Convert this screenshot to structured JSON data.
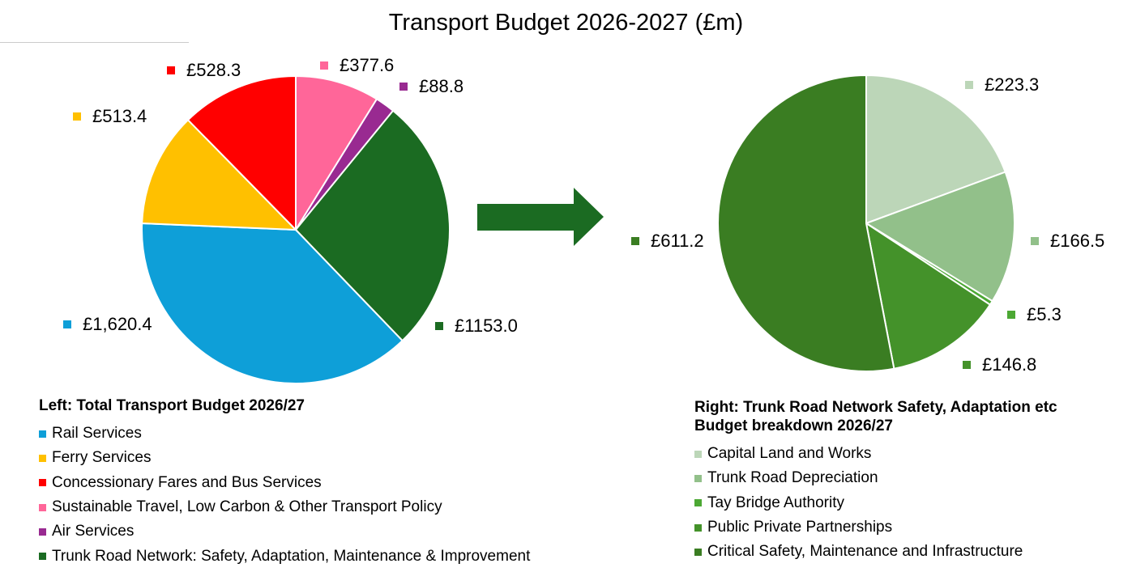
{
  "chart_data": [
    {
      "type": "pie",
      "title": "Transport Budget 2026-2027 (£m)",
      "legend_title": "Left: Total Transport Budget 2026/27",
      "legend_placement": "bottom",
      "slices": [
        {
          "name": "Sustainable Travel, Low Carbon & Other Transport Policy",
          "value": 377.6,
          "label": "£377.6",
          "color": "#FF6699"
        },
        {
          "name": "Air Services",
          "value": 88.8,
          "label": "£88.8",
          "color": "#992A91"
        },
        {
          "name": "Trunk Road Network: Safety, Adaptation, Maintenance & Improvement",
          "value": 1153.0,
          "label": "£1153.0",
          "color": "#1B6B22"
        },
        {
          "name": "Rail Services",
          "value": 1620.4,
          "label": "£1,620.4",
          "color": "#0E9FD8"
        },
        {
          "name": "Ferry Services",
          "value": 513.4,
          "label": "£513.4",
          "color": "#FFC000"
        },
        {
          "name": "Concessionary Fares and Bus Services",
          "value": 528.3,
          "label": "£528.3",
          "color": "#FF0000"
        }
      ],
      "legend_order": [
        3,
        4,
        5,
        0,
        1,
        2
      ]
    },
    {
      "type": "pie",
      "legend_title": "Right: Trunk Road Network Safety, Adaptation etc Budget breakdown 2026/27",
      "legend_placement": "bottom",
      "slices": [
        {
          "name": "Capital Land and Works",
          "value": 223.3,
          "label": "£223.3",
          "color": "#BCD6B8"
        },
        {
          "name": "Trunk Road Depreciation",
          "value": 166.5,
          "label": "£166.5",
          "color": "#92C08A"
        },
        {
          "name": "Tay Bridge Authority",
          "value": 5.3,
          "label": "£5.3",
          "color": "#4CA834"
        },
        {
          "name": "Public Private Partnerships",
          "value": 146.8,
          "label": "£146.8",
          "color": "#44922A"
        },
        {
          "name": "Critical Safety, Maintenance and Infrastructure",
          "value": 611.2,
          "label": "£611.2",
          "color": "#3A7D22"
        }
      ],
      "legend_order": [
        0,
        1,
        2,
        3,
        4
      ]
    }
  ],
  "arrow_color": "#1B6B22"
}
